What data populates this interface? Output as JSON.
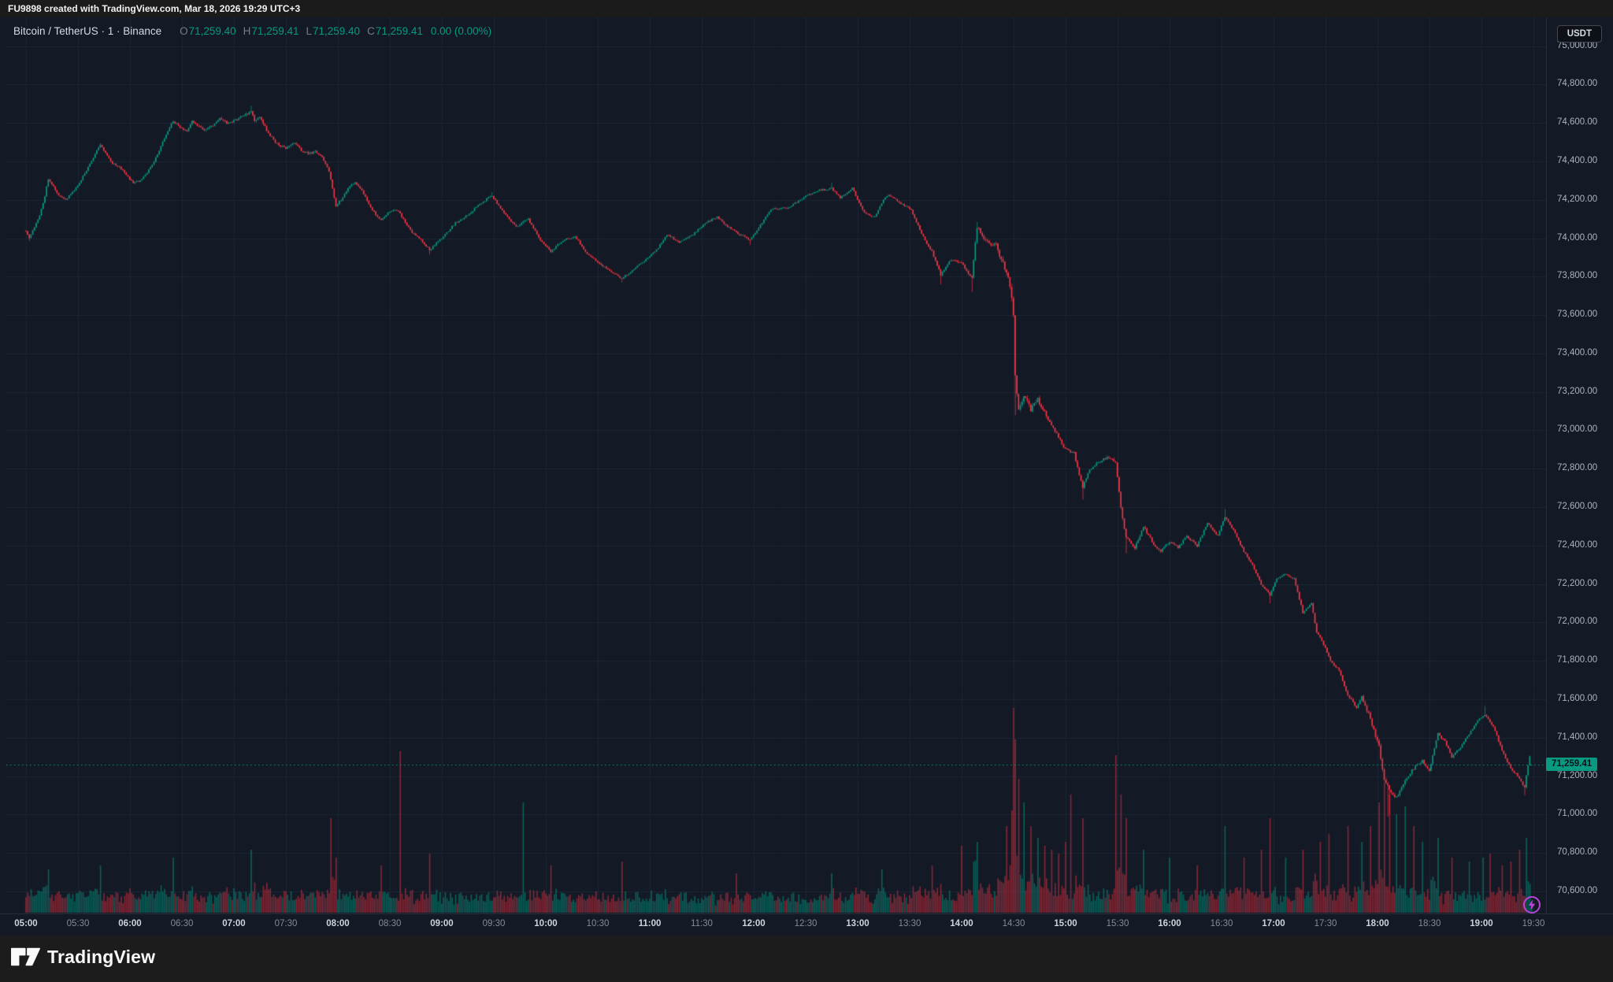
{
  "attribution": {
    "text": "FU9898 created with TradingView.com, Mar 18, 2026 19:29 UTC+3"
  },
  "legend": {
    "symbol_title": "Bitcoin / TetherUS · 1 · Binance",
    "ohlc": [
      {
        "label": "O",
        "value": "71,259.40"
      },
      {
        "label": "H",
        "value": "71,259.41"
      },
      {
        "label": "L",
        "value": "71,259.40"
      },
      {
        "label": "C",
        "value": "71,259.41"
      }
    ],
    "change": "0.00 (0.00%)"
  },
  "currency_button": {
    "label": "USDT"
  },
  "price_tag": {
    "text": "71,259.41"
  },
  "footer": {
    "brand": "TradingView"
  },
  "colors": {
    "up": "#089981",
    "down": "#f23645",
    "volume_up": "rgba(8,153,129,0.55)",
    "volume_down": "rgba(242,54,69,0.5)",
    "grid": "#1d2432",
    "chart_bg": "#131a26",
    "price_line": "#089981",
    "tag_bg": "#089981",
    "bolt": "#bb44d8"
  },
  "chart_data": {
    "type": "candlestick",
    "title": "Bitcoin / TetherUS",
    "interval": "1 minute",
    "exchange": "Binance",
    "quote_currency": "USDT",
    "last_price": 71259.41,
    "current_ohlc": {
      "open": 71259.4,
      "high": 71259.41,
      "low": 71259.4,
      "close": 71259.41,
      "change": "0.00 (0.00%)"
    },
    "session_high": 74690,
    "session_low": 70990,
    "price_axis": {
      "price_at_plot_top": 75150,
      "price_at_plot_bottom": 70485,
      "tick_step": 200,
      "tick_labels": [
        "75,000.00",
        "74,800.00",
        "74,600.00",
        "74,400.00",
        "74,200.00",
        "74,000.00",
        "73,800.00",
        "73,600.00",
        "73,400.00",
        "73,200.00",
        "73,000.00",
        "72,800.00",
        "72,600.00",
        "72,400.00",
        "72,200.00",
        "72,000.00",
        "71,800.00",
        "71,600.00",
        "71,400.00",
        "71,200.00",
        "71,000.00",
        "70,800.00",
        "70,600.00"
      ],
      "tick_values": [
        75000,
        74800,
        74600,
        74400,
        74200,
        74000,
        73800,
        73600,
        73400,
        73200,
        73000,
        72800,
        72600,
        72400,
        72200,
        72000,
        71800,
        71600,
        71400,
        71200,
        71000,
        70800,
        70600
      ]
    },
    "time_axis": {
      "start": "05:00",
      "end": "19:30",
      "tick_interval_minutes": 30,
      "labels": [
        "05:00",
        "05:30",
        "06:00",
        "06:30",
        "07:00",
        "07:30",
        "08:00",
        "08:30",
        "09:00",
        "09:30",
        "10:00",
        "10:30",
        "11:00",
        "11:30",
        "12:00",
        "12:30",
        "13:00",
        "13:30",
        "14:00",
        "14:30",
        "15:00",
        "15:30",
        "16:00",
        "16:30",
        "17:00",
        "17:30",
        "18:00",
        "18:30",
        "19:00",
        "19:30"
      ]
    },
    "grid": true,
    "minutes_total": 870,
    "noise_seed": 1337,
    "anchors": [
      [
        0,
        74040
      ],
      [
        2,
        74000
      ],
      [
        5,
        74060
      ],
      [
        8,
        74120
      ],
      [
        11,
        74220
      ],
      [
        13,
        74310
      ],
      [
        16,
        74270
      ],
      [
        19,
        74220
      ],
      [
        23,
        74200
      ],
      [
        27,
        74240
      ],
      [
        31,
        74290
      ],
      [
        36,
        74370
      ],
      [
        40,
        74440
      ],
      [
        43,
        74485
      ],
      [
        46,
        74440
      ],
      [
        50,
        74390
      ],
      [
        54,
        74370
      ],
      [
        58,
        74330
      ],
      [
        62,
        74290
      ],
      [
        66,
        74300
      ],
      [
        70,
        74340
      ],
      [
        74,
        74400
      ],
      [
        78,
        74480
      ],
      [
        82,
        74560
      ],
      [
        85,
        74610
      ],
      [
        89,
        74580
      ],
      [
        93,
        74560
      ],
      [
        96,
        74610
      ],
      [
        100,
        74580
      ],
      [
        104,
        74560
      ],
      [
        108,
        74590
      ],
      [
        112,
        74630
      ],
      [
        116,
        74600
      ],
      [
        120,
        74610
      ],
      [
        124,
        74630
      ],
      [
        128,
        74650
      ],
      [
        130,
        74660
      ],
      [
        132,
        74610
      ],
      [
        135,
        74630
      ],
      [
        139,
        74560
      ],
      [
        143,
        74510
      ],
      [
        147,
        74480
      ],
      [
        151,
        74470
      ],
      [
        155,
        74500
      ],
      [
        159,
        74460
      ],
      [
        163,
        74440
      ],
      [
        167,
        74450
      ],
      [
        171,
        74420
      ],
      [
        175,
        74350
      ],
      [
        179,
        74170
      ],
      [
        183,
        74210
      ],
      [
        186,
        74260
      ],
      [
        190,
        74290
      ],
      [
        194,
        74250
      ],
      [
        198,
        74180
      ],
      [
        202,
        74120
      ],
      [
        205,
        74095
      ],
      [
        209,
        74130
      ],
      [
        212,
        74150
      ],
      [
        215,
        74140
      ],
      [
        222,
        74040
      ],
      [
        228,
        73990
      ],
      [
        233,
        73940
      ],
      [
        240,
        74000
      ],
      [
        248,
        74080
      ],
      [
        255,
        74120
      ],
      [
        262,
        74180
      ],
      [
        269,
        74220
      ],
      [
        276,
        74130
      ],
      [
        283,
        74060
      ],
      [
        290,
        74100
      ],
      [
        297,
        73990
      ],
      [
        303,
        73930
      ],
      [
        310,
        73990
      ],
      [
        317,
        74010
      ],
      [
        324,
        73920
      ],
      [
        331,
        73870
      ],
      [
        337,
        73830
      ],
      [
        344,
        73790
      ],
      [
        351,
        73840
      ],
      [
        358,
        73890
      ],
      [
        364,
        73940
      ],
      [
        370,
        74020
      ],
      [
        377,
        73980
      ],
      [
        385,
        74020
      ],
      [
        392,
        74080
      ],
      [
        399,
        74110
      ],
      [
        405,
        74060
      ],
      [
        412,
        74020
      ],
      [
        418,
        73990
      ],
      [
        424,
        74070
      ],
      [
        430,
        74150
      ],
      [
        440,
        74160
      ],
      [
        450,
        74220
      ],
      [
        458,
        74250
      ],
      [
        465,
        74260
      ],
      [
        470,
        74210
      ],
      [
        477,
        74260
      ],
      [
        484,
        74130
      ],
      [
        490,
        74110
      ],
      [
        495,
        74200
      ],
      [
        498,
        74230
      ],
      [
        505,
        74180
      ],
      [
        511,
        74150
      ],
      [
        517,
        74020
      ],
      [
        523,
        73930
      ],
      [
        528,
        73810
      ],
      [
        534,
        73890
      ],
      [
        540,
        73870
      ],
      [
        546,
        73790
      ],
      [
        549,
        74060
      ],
      [
        554,
        73990
      ],
      [
        560,
        73960
      ],
      [
        564,
        73870
      ],
      [
        567,
        73790
      ],
      [
        569,
        73700
      ],
      [
        570,
        73590
      ],
      [
        571,
        73280
      ],
      [
        573,
        73120
      ],
      [
        576,
        73180
      ],
      [
        580,
        73110
      ],
      [
        584,
        73160
      ],
      [
        588,
        73090
      ],
      [
        592,
        73030
      ],
      [
        596,
        72960
      ],
      [
        600,
        72900
      ],
      [
        605,
        72880
      ],
      [
        610,
        72700
      ],
      [
        613,
        72780
      ],
      [
        618,
        72830
      ],
      [
        624,
        72860
      ],
      [
        629,
        72840
      ],
      [
        632,
        72600
      ],
      [
        635,
        72440
      ],
      [
        640,
        72390
      ],
      [
        645,
        72500
      ],
      [
        650,
        72420
      ],
      [
        655,
        72370
      ],
      [
        660,
        72420
      ],
      [
        665,
        72390
      ],
      [
        670,
        72450
      ],
      [
        676,
        72400
      ],
      [
        682,
        72520
      ],
      [
        688,
        72450
      ],
      [
        692,
        72550
      ],
      [
        697,
        72480
      ],
      [
        703,
        72370
      ],
      [
        708,
        72300
      ],
      [
        713,
        72200
      ],
      [
        718,
        72140
      ],
      [
        722,
        72230
      ],
      [
        727,
        72250
      ],
      [
        732,
        72230
      ],
      [
        737,
        72050
      ],
      [
        742,
        72100
      ],
      [
        745,
        71950
      ],
      [
        750,
        71870
      ],
      [
        753,
        71800
      ],
      [
        758,
        71750
      ],
      [
        763,
        71620
      ],
      [
        768,
        71560
      ],
      [
        771,
        71610
      ],
      [
        776,
        71500
      ],
      [
        781,
        71350
      ],
      [
        784,
        71190
      ],
      [
        787,
        71120
      ],
      [
        791,
        71090
      ],
      [
        796,
        71180
      ],
      [
        801,
        71240
      ],
      [
        806,
        71280
      ],
      [
        810,
        71230
      ],
      [
        815,
        71420
      ],
      [
        819,
        71380
      ],
      [
        823,
        71300
      ],
      [
        828,
        71350
      ],
      [
        833,
        71420
      ],
      [
        838,
        71490
      ],
      [
        842,
        71520
      ],
      [
        847,
        71460
      ],
      [
        852,
        71330
      ],
      [
        857,
        71240
      ],
      [
        861,
        71200
      ],
      [
        863,
        71170
      ],
      [
        865,
        71140
      ],
      [
        867,
        71260
      ],
      [
        868,
        71300
      ],
      [
        869,
        71259.41
      ]
    ],
    "wick_overrides": [
      [
        2,
        73985,
        null
      ],
      [
        43,
        null,
        74495
      ],
      [
        130,
        null,
        74690
      ],
      [
        233,
        73915,
        null
      ],
      [
        269,
        null,
        74240
      ],
      [
        344,
        73770,
        null
      ],
      [
        418,
        73965,
        null
      ],
      [
        465,
        null,
        74290
      ],
      [
        528,
        73760,
        null
      ],
      [
        546,
        73720,
        null
      ],
      [
        549,
        null,
        74085
      ],
      [
        571,
        73080,
        null
      ],
      [
        610,
        72640,
        null
      ],
      [
        635,
        72360,
        null
      ],
      [
        692,
        null,
        72590
      ],
      [
        718,
        72100,
        null
      ],
      [
        786,
        70990,
        null
      ],
      [
        787,
        71000,
        null
      ],
      [
        842,
        null,
        71565
      ],
      [
        865,
        71100,
        null
      ]
    ],
    "volume_spikes": [
      [
        13,
        55
      ],
      [
        43,
        60
      ],
      [
        85,
        70
      ],
      [
        130,
        80
      ],
      [
        176,
        120
      ],
      [
        179,
        70
      ],
      [
        205,
        60
      ],
      [
        216,
        205
      ],
      [
        233,
        75
      ],
      [
        287,
        140
      ],
      [
        303,
        60
      ],
      [
        344,
        65
      ],
      [
        410,
        50
      ],
      [
        465,
        50
      ],
      [
        494,
        55
      ],
      [
        523,
        60
      ],
      [
        540,
        85
      ],
      [
        549,
        90
      ],
      [
        566,
        110
      ],
      [
        569,
        130
      ],
      [
        570,
        260
      ],
      [
        571,
        220
      ],
      [
        573,
        170
      ],
      [
        576,
        140
      ],
      [
        580,
        110
      ],
      [
        584,
        95
      ],
      [
        588,
        85
      ],
      [
        592,
        80
      ],
      [
        596,
        75
      ],
      [
        600,
        90
      ],
      [
        603,
        150
      ],
      [
        610,
        120
      ],
      [
        629,
        200
      ],
      [
        632,
        150
      ],
      [
        635,
        120
      ],
      [
        645,
        80
      ],
      [
        660,
        70
      ],
      [
        676,
        60
      ],
      [
        692,
        110
      ],
      [
        703,
        70
      ],
      [
        713,
        80
      ],
      [
        718,
        120
      ],
      [
        727,
        70
      ],
      [
        737,
        80
      ],
      [
        747,
        90
      ],
      [
        752,
        100
      ],
      [
        763,
        110
      ],
      [
        771,
        90
      ],
      [
        776,
        110
      ],
      [
        781,
        140
      ],
      [
        784,
        165
      ],
      [
        787,
        150
      ],
      [
        791,
        125
      ],
      [
        796,
        135
      ],
      [
        801,
        110
      ],
      [
        806,
        90
      ],
      [
        815,
        95
      ],
      [
        823,
        70
      ],
      [
        833,
        65
      ],
      [
        841,
        70
      ],
      [
        845,
        75
      ],
      [
        852,
        60
      ],
      [
        857,
        65
      ],
      [
        862,
        80
      ],
      [
        866,
        95
      ]
    ]
  }
}
